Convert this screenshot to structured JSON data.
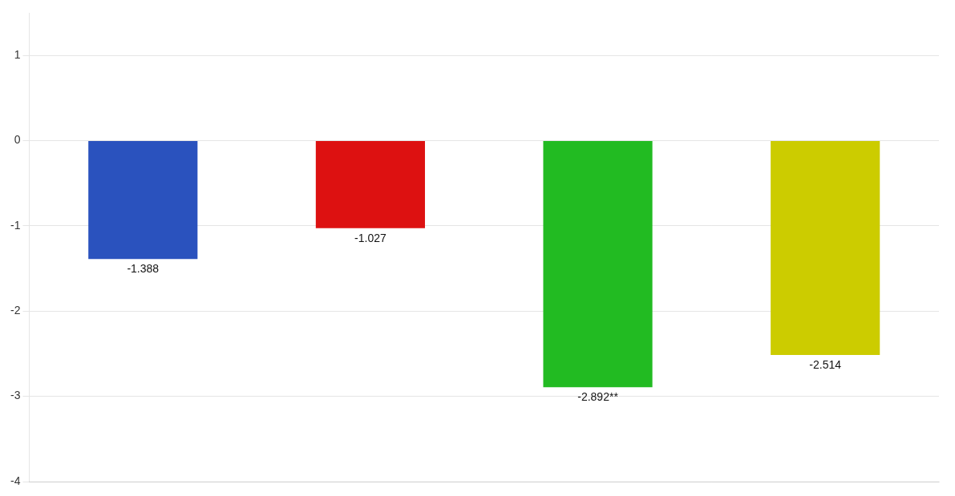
{
  "chart_data": {
    "type": "bar",
    "categories": [
      null,
      null,
      null,
      null
    ],
    "values": [
      -1.388,
      -1.027,
      -2.892,
      -2.514
    ],
    "value_labels": [
      "-1.388",
      "-1.027",
      "-2.892**",
      "-2.514"
    ],
    "colors": [
      "#2A52BE",
      "#DD1111",
      "#22BB22",
      "#CCCC00"
    ],
    "ylim": [
      -4.0,
      1.5
    ],
    "yticks": [
      -4,
      -3,
      -2,
      -1,
      0,
      1
    ],
    "grid": true,
    "data_labels": true,
    "tick_labels": "y"
  }
}
